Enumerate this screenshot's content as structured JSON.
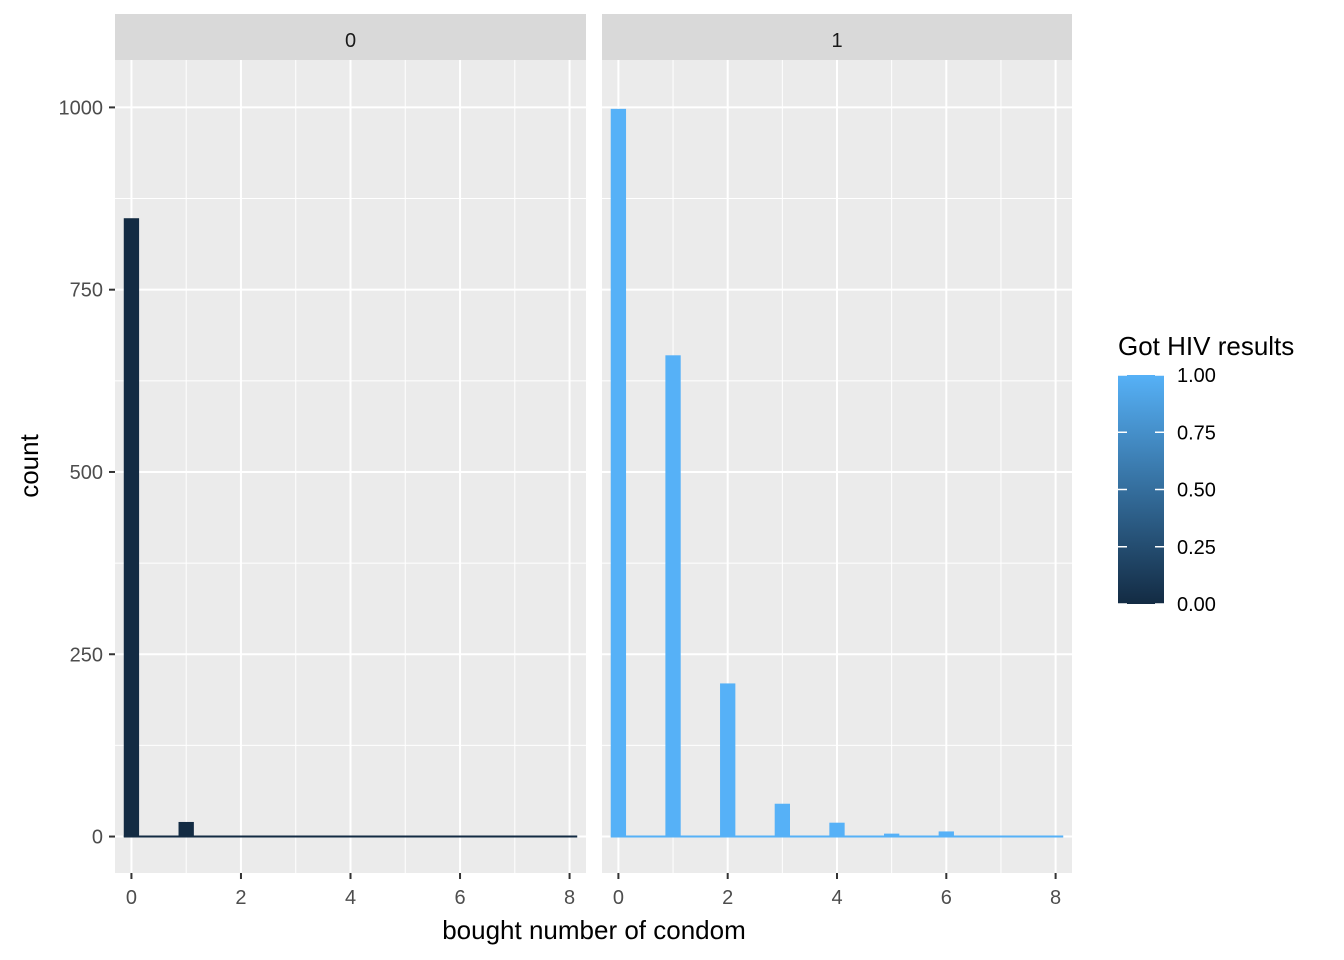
{
  "chart_data": {
    "type": "bar",
    "xlabel": "bought number of condom",
    "ylabel": "count",
    "xlim": [
      -0.3,
      8.3
    ],
    "ylim": [
      -50,
      1065
    ],
    "x_ticks": [
      0,
      2,
      4,
      6,
      8
    ],
    "x_tick_labels": [
      "0",
      "2",
      "4",
      "6",
      "8"
    ],
    "y_ticks": [
      0,
      250,
      500,
      750,
      1000
    ],
    "y_tick_labels": [
      "0",
      "250",
      "500",
      "750",
      "1000"
    ],
    "bin_width": 0.28,
    "grid": true,
    "facets": [
      {
        "label": "0",
        "fill_value": 0.0,
        "x": [
          0,
          1,
          2,
          3,
          4,
          5,
          6,
          7,
          8
        ],
        "values": [
          848,
          20,
          0,
          0,
          0,
          0,
          0,
          0,
          0
        ]
      },
      {
        "label": "1",
        "fill_value": 1.0,
        "x": [
          0,
          1,
          2,
          3,
          4,
          5,
          6,
          7,
          8
        ],
        "values": [
          998,
          660,
          210,
          45,
          19,
          4,
          7,
          0,
          0
        ]
      }
    ],
    "legend": {
      "title": "Got HIV results",
      "position": "right",
      "labels": [
        "1.00",
        "0.75",
        "0.50",
        "0.25",
        "0.00"
      ],
      "values": [
        1.0,
        0.75,
        0.5,
        0.25,
        0.0
      ],
      "color_low": "#132B43",
      "color_high": "#56B1F7"
    },
    "colors": {
      "panel_bg": "#ebebeb",
      "strip_bg": "#d9d9d9",
      "grid": "#ffffff"
    }
  }
}
